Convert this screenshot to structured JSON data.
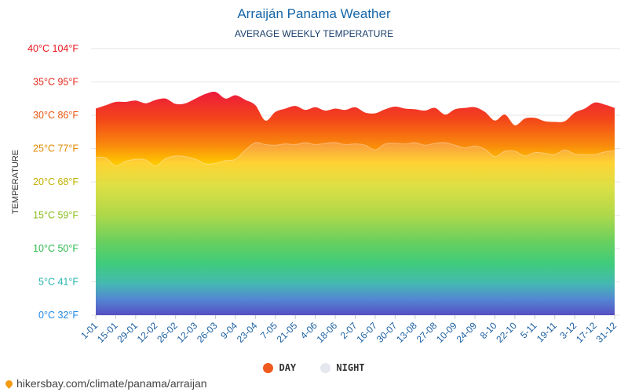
{
  "header": {
    "title": "Arraiján Panama Weather",
    "subtitle": "AVERAGE WEEKLY TEMPERATURE"
  },
  "axis": {
    "ylabel": "TEMPERATURE"
  },
  "legend": {
    "day_label": "DAY",
    "night_label": "NIGHT"
  },
  "footer": {
    "url": "hikersbay.com/climate/panama/arraijan"
  },
  "colors": {
    "title": "#1565a7",
    "day_legend": "#f05a1e",
    "night_legend": "#e4e8ee",
    "grid": "#e6e6e6"
  },
  "chart_data": {
    "type": "area",
    "title": "Arraiján Panama Weather",
    "subtitle": "AVERAGE WEEKLY TEMPERATURE",
    "xlabel": "",
    "ylabel": "TEMPERATURE",
    "ylim": [
      0,
      40
    ],
    "yticks": [
      {
        "value": 0,
        "label": "0°C 32°F",
        "color": "#1e88e5"
      },
      {
        "value": 5,
        "label": "5°C 41°F",
        "color": "#26b5b0"
      },
      {
        "value": 10,
        "label": "10°C 50°F",
        "color": "#2db84d"
      },
      {
        "value": 15,
        "label": "15°C 59°F",
        "color": "#8bbd1d"
      },
      {
        "value": 20,
        "label": "20°C 68°F",
        "color": "#c2b000"
      },
      {
        "value": 25,
        "label": "25°C 77°F",
        "color": "#e08a00"
      },
      {
        "value": 30,
        "label": "30°C 86°F",
        "color": "#e8540f"
      },
      {
        "value": 35,
        "label": "35°C 95°F",
        "color": "#e52d1e"
      },
      {
        "value": 40,
        "label": "40°C 104°F",
        "color": "#e5161e"
      }
    ],
    "grid": true,
    "legend_position": "bottom",
    "x": [
      "1-01",
      "8-01",
      "15-01",
      "22-01",
      "29-01",
      "5-02",
      "12-02",
      "19-02",
      "26-02",
      "5-03",
      "12-03",
      "19-03",
      "26-03",
      "2-04",
      "9-04",
      "16-04",
      "23-04",
      "30-04",
      "7-05",
      "14-05",
      "21-05",
      "28-05",
      "4-06",
      "11-06",
      "18-06",
      "25-06",
      "2-07",
      "9-07",
      "16-07",
      "23-07",
      "30-07",
      "6-08",
      "13-08",
      "20-08",
      "27-08",
      "3-09",
      "10-09",
      "17-09",
      "24-09",
      "1-10",
      "8-10",
      "15-10",
      "22-10",
      "29-10",
      "5-11",
      "12-11",
      "19-11",
      "26-11",
      "3-12",
      "10-12",
      "17-12",
      "24-12",
      "31-12"
    ],
    "x_tick_labels": [
      "1-01",
      "15-01",
      "29-01",
      "12-02",
      "26-02",
      "12-03",
      "26-03",
      "9-04",
      "23-04",
      "7-05",
      "21-05",
      "4-06",
      "18-06",
      "2-07",
      "16-07",
      "30-07",
      "13-08",
      "27-08",
      "10-09",
      "24-09",
      "8-10",
      "22-10",
      "5-11",
      "19-11",
      "3-12",
      "17-12",
      "31-12"
    ],
    "series": [
      {
        "name": "DAY",
        "values": [
          31,
          31.5,
          32,
          32,
          32.2,
          31.8,
          32.3,
          32.5,
          31.7,
          31.8,
          32.5,
          33.2,
          33.5,
          32.5,
          33,
          32.3,
          31.5,
          29.2,
          30.5,
          31,
          31.4,
          30.8,
          31.2,
          30.7,
          31,
          30.8,
          31.2,
          30.4,
          30.3,
          30.9,
          31.3,
          31,
          30.9,
          30.7,
          31.1,
          30.1,
          30.9,
          31.1,
          31.2,
          30.5,
          29.2,
          30.1,
          28.5,
          29.5,
          29.6,
          29.1,
          29,
          29.1,
          30.4,
          31,
          31.9,
          31.6,
          31.1
        ]
      },
      {
        "name": "NIGHT",
        "values": [
          23.7,
          23.6,
          22.4,
          23.1,
          23.4,
          23.3,
          22.4,
          23.5,
          23.9,
          23.8,
          23.4,
          22.7,
          22.8,
          23.2,
          23.4,
          24.8,
          25.9,
          25.6,
          25.5,
          25.7,
          25.6,
          25.9,
          25.6,
          25.8,
          25.9,
          25.6,
          25.7,
          25.5,
          24.8,
          25.7,
          25.8,
          25.7,
          25.9,
          25.5,
          25.8,
          25.9,
          25.5,
          25.1,
          25.4,
          24.9,
          23.8,
          24.6,
          24.6,
          23.9,
          24.4,
          24.3,
          24.1,
          24.8,
          24.2,
          24.1,
          24.1,
          24.5,
          24.7
        ]
      }
    ]
  }
}
